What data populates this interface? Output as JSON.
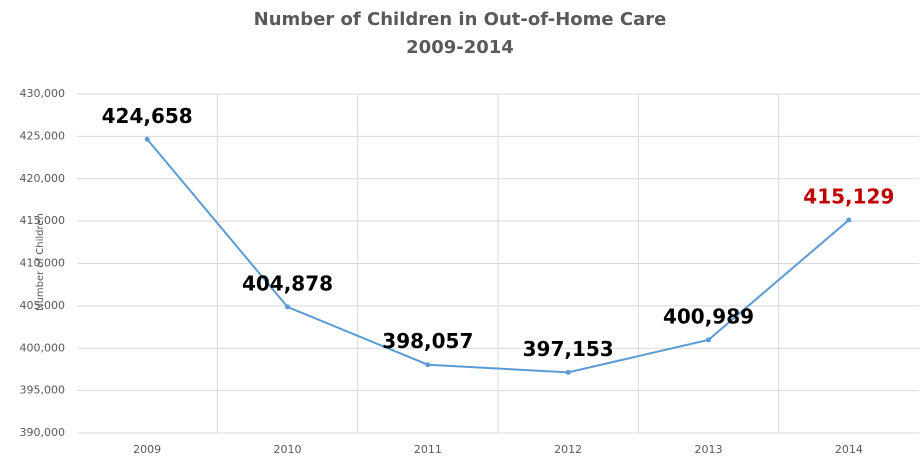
{
  "chart_data": {
    "type": "line",
    "title": "Number of Children in Out-of-Home Care",
    "subtitle": "2009-2014",
    "y_axis_label": "Number of Children",
    "categories": [
      "2009",
      "2010",
      "2011",
      "2012",
      "2013",
      "2014"
    ],
    "values": [
      424658,
      404878,
      398057,
      397153,
      400989,
      415129
    ],
    "value_labels": [
      "424,658",
      "404,878",
      "398,057",
      "397,153",
      "400,989",
      "415,129"
    ],
    "value_label_colors": [
      "#000000",
      "#000000",
      "#000000",
      "#000000",
      "#000000",
      "#c00000"
    ],
    "color": "#5b9bd5",
    "ylim": [
      390000,
      430000
    ],
    "yticks": [
      {
        "value": 390000,
        "label": "390,000"
      },
      {
        "value": 395000,
        "label": "395,000"
      },
      {
        "value": 400000,
        "label": "400,000"
      },
      {
        "value": 405000,
        "label": "405,000"
      },
      {
        "value": 410000,
        "label": "410,000"
      },
      {
        "value": 415000,
        "label": "415,000"
      },
      {
        "value": 420000,
        "label": "420,000"
      },
      {
        "value": 425000,
        "label": "425,000"
      },
      {
        "value": 430000,
        "label": "430,000"
      }
    ],
    "grid": true
  }
}
